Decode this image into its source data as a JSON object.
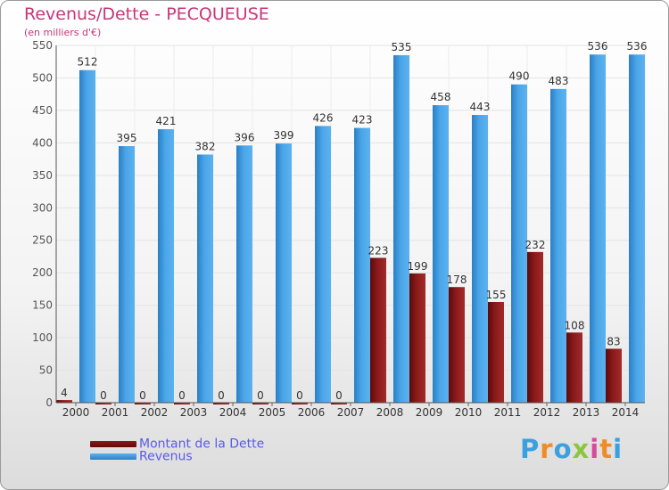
{
  "title": "Revenus/Dette - PECQUEUSE",
  "subtitle": "(en milliers d'€)",
  "brand": {
    "name": "Proxiti",
    "letter_colors": [
      "#3aa0de",
      "#f08c28",
      "#3aa0de",
      "#8cc63f",
      "#d94a9c",
      "#f08c28",
      "#3aa0de"
    ]
  },
  "colors": {
    "dette": "#8b1a1a",
    "revenus": "#3d9be0",
    "title": "#c8367a",
    "legend_text": "#5a5ae6"
  },
  "legend": [
    {
      "key": "dette",
      "label": "Montant de la Dette"
    },
    {
      "key": "revenus",
      "label": "Revenus"
    }
  ],
  "chart_data": {
    "type": "bar",
    "title": "Revenus/Dette - PECQUEUSE",
    "ylabel": "(en milliers d'€)",
    "xlabel": "",
    "categories": [
      "2000",
      "2001",
      "2002",
      "2003",
      "2004",
      "2005",
      "2006",
      "2007",
      "2008",
      "2009",
      "2010",
      "2011",
      "2012",
      "2013",
      "2014"
    ],
    "series": [
      {
        "name": "Montant de la Dette",
        "key": "dette",
        "values": [
          4,
          0,
          0,
          0,
          0,
          0,
          0,
          0,
          223,
          199,
          178,
          155,
          232,
          108,
          83
        ]
      },
      {
        "name": "Revenus",
        "key": "revenus",
        "values": [
          512,
          395,
          421,
          382,
          396,
          399,
          426,
          423,
          535,
          458,
          443,
          490,
          483,
          536,
          536
        ]
      }
    ],
    "ylim": [
      0,
      550
    ],
    "yticks": [
      0,
      50,
      100,
      150,
      200,
      250,
      300,
      350,
      400,
      450,
      500,
      550
    ],
    "grid": true,
    "legend_position": "bottom-left"
  }
}
